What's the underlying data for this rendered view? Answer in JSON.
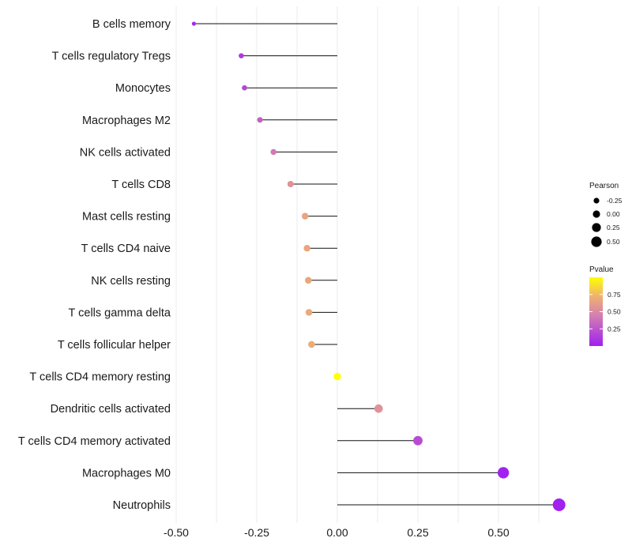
{
  "chart_data": {
    "type": "lollipop",
    "title": "",
    "xlabel": "",
    "ylabel": "",
    "xlim": [
      -0.55,
      0.7
    ],
    "x_ticks": [
      -0.5,
      -0.25,
      0.0,
      0.25,
      0.5
    ],
    "x_tick_labels": [
      "-0.50",
      "-0.25",
      "0.00",
      "0.25",
      "0.50"
    ],
    "categories": [
      "B cells memory",
      "T cells regulatory  Tregs",
      "Monocytes",
      "Macrophages M2",
      "NK cells activated",
      "T cells CD8",
      "Mast cells resting",
      "T cells CD4 naive",
      "NK cells resting",
      "T cells gamma delta",
      "T cells follicular helper",
      "T cells CD4 memory resting",
      "Dendritic cells activated",
      "T cells CD4 memory activated",
      "Macrophages M0",
      "Neutrophils"
    ],
    "values": [
      -0.445,
      -0.298,
      -0.288,
      -0.24,
      -0.198,
      -0.145,
      -0.1,
      -0.094,
      -0.09,
      -0.088,
      -0.08,
      0.0,
      0.128,
      0.25,
      0.515,
      0.688
    ],
    "pvalues": [
      0.04,
      0.12,
      0.18,
      0.3,
      0.42,
      0.55,
      0.65,
      0.66,
      0.67,
      0.68,
      0.7,
      1.0,
      0.55,
      0.2,
      0.01,
      0.005
    ],
    "size_legend": {
      "title": "Pearson",
      "labels": [
        "-0.25",
        "0.00",
        "0.25",
        "0.50"
      ],
      "values": [
        -0.25,
        0.0,
        0.25,
        0.5
      ]
    },
    "color_legend": {
      "title": "Pvalue",
      "labels": [
        "0.75",
        "0.50",
        "0.25"
      ],
      "values": [
        0.75,
        0.5,
        0.25
      ],
      "range": [
        0.0,
        1.0
      ],
      "colors": [
        "#a020f0",
        "#d580b0",
        "#f0b070",
        "#ffff00"
      ]
    },
    "grid": true,
    "legend_position": "right"
  }
}
